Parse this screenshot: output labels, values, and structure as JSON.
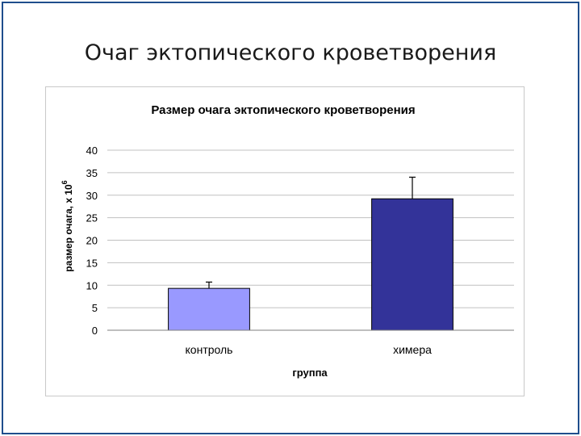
{
  "slide": {
    "title": "Очаг эктопического кроветворения"
  },
  "chart_data": {
    "type": "bar",
    "title": "Размер очага эктопического кроветворения",
    "xlabel": "группа",
    "ylabel": "размер очага, x 10",
    "ylabel_superscript": "6",
    "categories": [
      "контроль",
      "химера"
    ],
    "values": [
      9.3,
      29.2
    ],
    "errors": [
      1.4,
      4.8
    ],
    "ylim": [
      0,
      40
    ],
    "yticks": [
      "0",
      "5",
      "10",
      "15",
      "20",
      "25",
      "30",
      "35",
      "40"
    ],
    "grid": true,
    "colors": [
      "#9999ff",
      "#333399"
    ],
    "grid_color": "#c0c0c0"
  }
}
